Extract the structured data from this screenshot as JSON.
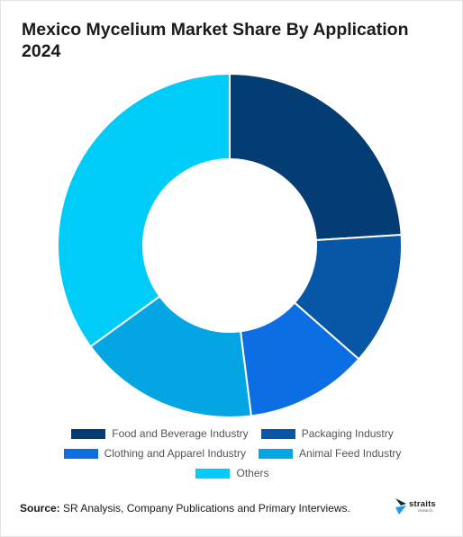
{
  "chart_data": {
    "type": "pie",
    "donut": true,
    "title": "Mexico Mycelium Market Share By Application 2024",
    "categories": [
      "Food and Beverage Industry",
      "Packaging Industry",
      "Clothing and Apparel Industry",
      "Animal Feed Industry",
      "Others"
    ],
    "values": [
      24,
      12.5,
      11.5,
      17,
      35
    ],
    "colors": [
      "#033d73",
      "#0856a6",
      "#0b6ee3",
      "#04a5e3",
      "#00ccfa"
    ],
    "legend_position": "bottom"
  },
  "source": {
    "label": "Source:",
    "text": "SR Analysis, Company Publications and Primary Interviews."
  },
  "logo": {
    "name": "straits",
    "sub": "research"
  }
}
